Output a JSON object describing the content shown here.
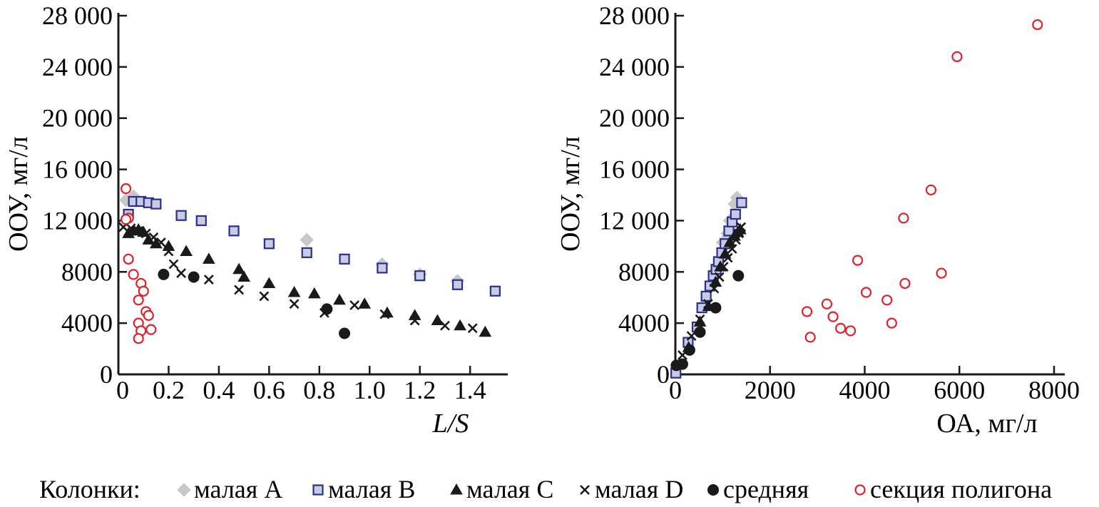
{
  "legend": {
    "title": "Колонки:",
    "entries": [
      {
        "name": "малая A",
        "marker": "diamond",
        "color": "#c8c8c8",
        "edge": "#c8c8c8"
      },
      {
        "name": "малая B",
        "marker": "square",
        "color": "#c9cbe0",
        "edge": "#2a2f8f"
      },
      {
        "name": "малая C",
        "marker": "triangle",
        "color": "#1a1a1a",
        "edge": "#1a1a1a"
      },
      {
        "name": "малая D",
        "marker": "cross",
        "color": "#1a1a1a",
        "edge": "#1a1a1a"
      },
      {
        "name": "средняя",
        "marker": "circle",
        "color": "#1a1a1a",
        "edge": "#1a1a1a"
      },
      {
        "name": "секция полигона",
        "marker": "circle-open",
        "color": "#ffffff",
        "edge": "#e0202a"
      }
    ]
  },
  "chart_data": [
    {
      "type": "scatter",
      "title": "",
      "xlabel": "L/S",
      "ylabel": "ООУ, мг/л",
      "xlim": [
        0,
        1.55
      ],
      "ylim": [
        0,
        28000
      ],
      "xticks": [
        0,
        0.2,
        0.4,
        0.6,
        0.8,
        1.0,
        1.2,
        1.4
      ],
      "xtick_labels": [
        "0",
        "0.2",
        "0.4",
        "0.6",
        "0.8",
        "1.0",
        "1.2",
        "1.4"
      ],
      "yticks": [
        0,
        4000,
        8000,
        12000,
        16000,
        20000,
        24000,
        28000
      ],
      "ytick_labels": [
        "0",
        "4000",
        "8000",
        "12 000",
        "16 000",
        "20 000",
        "24 000",
        "28 000"
      ],
      "series": [
        {
          "name": "малая A",
          "x": [
            0.03,
            0.06,
            0.75,
            1.05,
            1.2,
            1.35
          ],
          "y": [
            13600,
            13900,
            10500,
            8600,
            7800,
            7300
          ]
        },
        {
          "name": "малая B",
          "x": [
            0.04,
            0.06,
            0.09,
            0.12,
            0.15,
            0.25,
            0.33,
            0.46,
            0.6,
            0.75,
            0.9,
            1.05,
            1.2,
            1.35,
            1.5
          ],
          "y": [
            12500,
            13500,
            13500,
            13400,
            13300,
            12400,
            12000,
            11200,
            10200,
            9500,
            9000,
            8300,
            7700,
            7000,
            6500
          ]
        },
        {
          "name": "малая C",
          "x": [
            0.04,
            0.06,
            0.08,
            0.1,
            0.12,
            0.15,
            0.2,
            0.27,
            0.36,
            0.48,
            0.5,
            0.6,
            0.7,
            0.78,
            0.88,
            0.98,
            1.07,
            1.18,
            1.27,
            1.36,
            1.46
          ],
          "y": [
            11000,
            11200,
            11300,
            11100,
            10500,
            10200,
            10000,
            9600,
            9000,
            8200,
            7600,
            7100,
            6400,
            6300,
            5800,
            5500,
            4800,
            4600,
            4200,
            3800,
            3300
          ]
        },
        {
          "name": "малая D",
          "x": [
            0.02,
            0.05,
            0.08,
            0.11,
            0.14,
            0.17,
            0.2,
            0.22,
            0.25,
            0.36,
            0.48,
            0.58,
            0.7,
            0.82,
            0.94,
            1.06,
            1.18,
            1.3,
            1.41
          ],
          "y": [
            11500,
            11400,
            11200,
            11000,
            10700,
            10300,
            9600,
            8600,
            7900,
            7400,
            6600,
            6100,
            5500,
            4800,
            5400,
            4700,
            4200,
            3800,
            3600
          ]
        },
        {
          "name": "средняя",
          "x": [
            0.18,
            0.3,
            0.83,
            0.9
          ],
          "y": [
            7800,
            7600,
            5100,
            3200
          ]
        },
        {
          "name": "секция полигона",
          "x": [
            0.03,
            0.04,
            0.03,
            0.04,
            0.06,
            0.09,
            0.1,
            0.08,
            0.11,
            0.12,
            0.08,
            0.09,
            0.13,
            0.08
          ],
          "y": [
            14500,
            12200,
            12100,
            9000,
            7800,
            7100,
            6500,
            5800,
            4900,
            4600,
            4000,
            3400,
            3500,
            2800
          ]
        }
      ]
    },
    {
      "type": "scatter",
      "title": "",
      "xlabel": "ОА, мг/л",
      "ylabel": "ООУ, мг/л",
      "xlim": [
        0,
        8000
      ],
      "ylim": [
        0,
        28000
      ],
      "xticks": [
        0,
        2000,
        4000,
        6000,
        8000
      ],
      "xtick_labels": [
        "0",
        "2000",
        "4000",
        "6000",
        "8000"
      ],
      "yticks": [
        0,
        4000,
        8000,
        12000,
        16000,
        20000,
        24000,
        28000
      ],
      "ytick_labels": [
        "0",
        "4000",
        "8000",
        "12 000",
        "16 000",
        "20 000",
        "24 000",
        "28 000"
      ],
      "series": [
        {
          "name": "малая A",
          "x": [
            1000,
            1100,
            1150,
            1250,
            1300
          ],
          "y": [
            10300,
            11000,
            12000,
            13300,
            13800
          ]
        },
        {
          "name": "малая B",
          "x": [
            10,
            270,
            460,
            560,
            650,
            730,
            800,
            860,
            910,
            980,
            1050,
            1130,
            1200,
            1270,
            1400
          ],
          "y": [
            100,
            2500,
            3700,
            5200,
            6100,
            6900,
            7700,
            8200,
            8800,
            9500,
            10200,
            11200,
            11900,
            12500,
            13400
          ]
        },
        {
          "name": "малая C",
          "x": [
            280,
            520,
            700,
            850,
            950,
            1050,
            1150,
            1250,
            1320,
            1370
          ],
          "y": [
            2100,
            4100,
            5300,
            7200,
            8400,
            9400,
            10300,
            10800,
            11100,
            11300
          ]
        },
        {
          "name": "малая D",
          "x": [
            150,
            340,
            520,
            690,
            820,
            930,
            1020,
            1110,
            1200,
            1280,
            1340,
            1390
          ],
          "y": [
            1500,
            3000,
            4300,
            5500,
            6700,
            7600,
            8400,
            9100,
            9800,
            10500,
            11000,
            11500
          ]
        },
        {
          "name": "средняя",
          "x": [
            20,
            150,
            300,
            520,
            850,
            1330
          ],
          "y": [
            700,
            800,
            1900,
            3300,
            5200,
            7700
          ]
        },
        {
          "name": "секция полигона",
          "x": [
            7650,
            5950,
            5400,
            4820,
            3850,
            5620,
            4850,
            4030,
            4470,
            3200,
            2780,
            3330,
            4570,
            3490,
            3700,
            2850
          ],
          "y": [
            27300,
            24800,
            14400,
            12200,
            8900,
            7900,
            7100,
            6400,
            5800,
            5500,
            4900,
            4500,
            4000,
            3600,
            3400,
            2900
          ]
        }
      ]
    }
  ]
}
